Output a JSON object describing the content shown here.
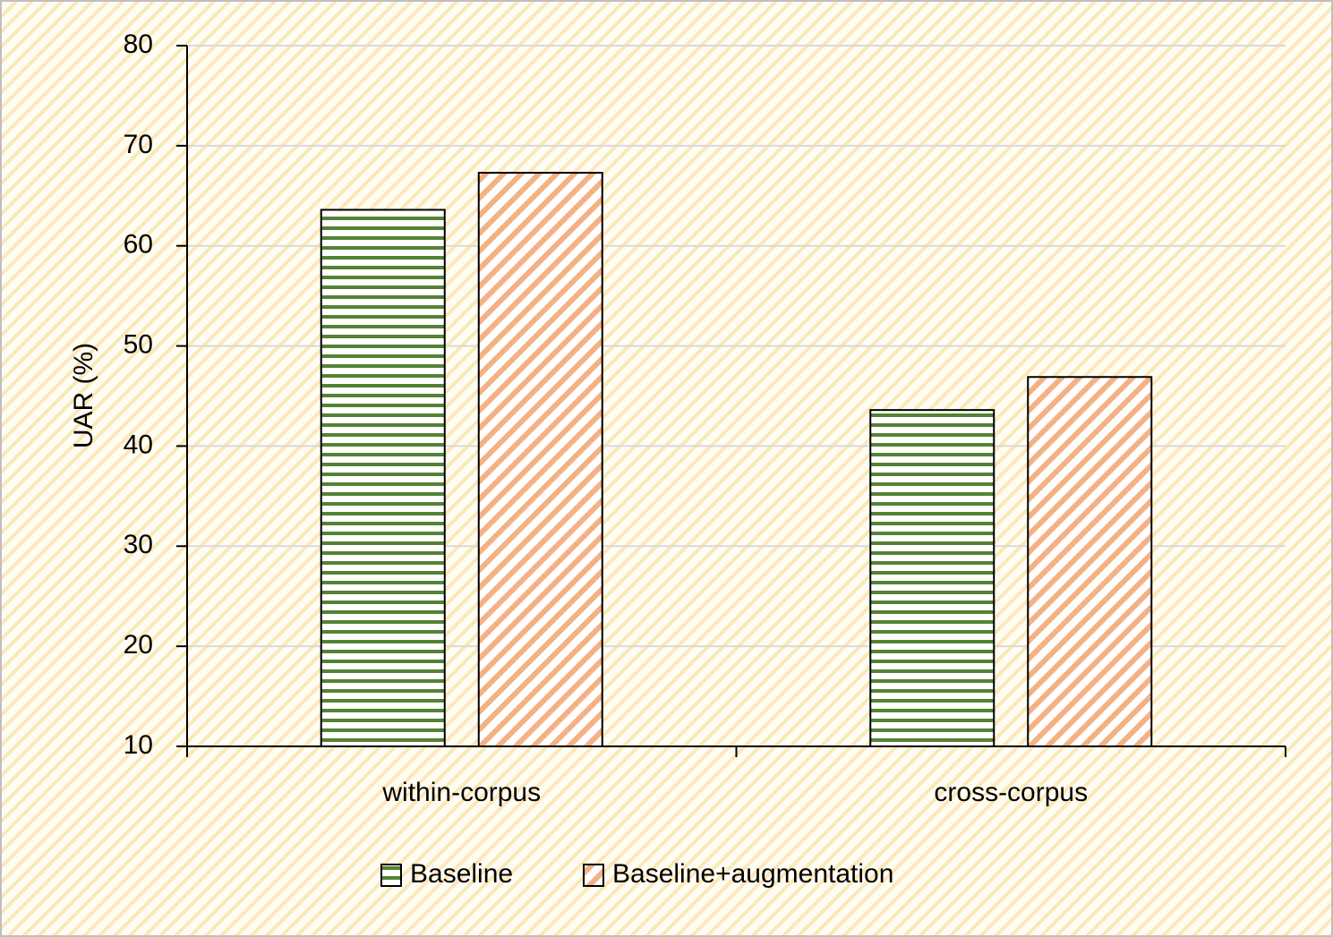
{
  "chart_data": {
    "type": "bar",
    "y_label": "UAR (%)",
    "categories": [
      "within-corpus",
      "cross-corpus"
    ],
    "series": [
      {
        "name": "Baseline",
        "color": "#548235",
        "pattern": "horizontal",
        "values": [
          63.6,
          43.6
        ]
      },
      {
        "name": "Baseline+augmentation",
        "color": "#f4b183",
        "pattern": "diagonal",
        "values": [
          67.3,
          46.9
        ]
      }
    ],
    "ylim": [
      10,
      80
    ],
    "yticks": [
      10,
      20,
      30,
      40,
      50,
      60,
      70,
      80
    ],
    "grid": true,
    "legend": "bottom"
  }
}
